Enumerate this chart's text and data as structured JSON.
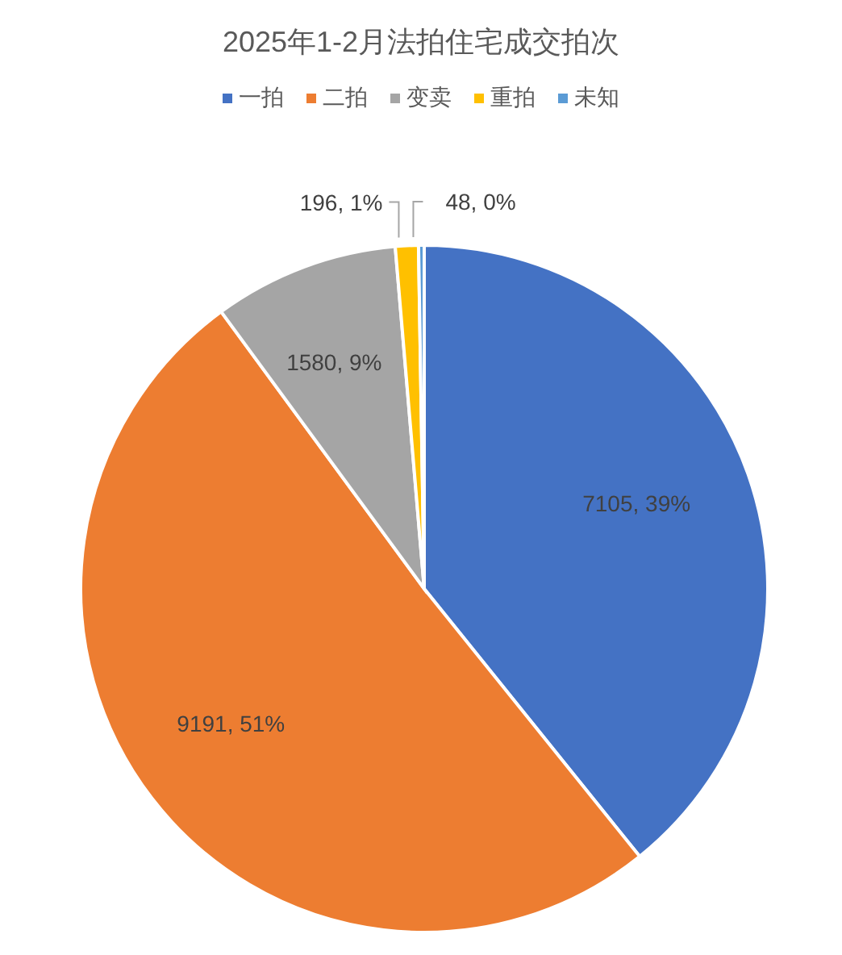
{
  "chart_data": {
    "type": "pie",
    "title": "2025年1-2月法拍住宅成交拍次",
    "categories": [
      "一拍",
      "二拍",
      "变卖",
      "重拍",
      "未知"
    ],
    "values": [
      7105,
      9191,
      1580,
      196,
      48
    ],
    "colors": [
      "#4472c4",
      "#ed7d31",
      "#a5a5a5",
      "#ffc000",
      "#5b9bd5"
    ],
    "value_labels": [
      "7105, 39%",
      "9191, 51%",
      "1580, 9%",
      "196, 1%",
      "48, 0%"
    ],
    "legend": "top"
  }
}
